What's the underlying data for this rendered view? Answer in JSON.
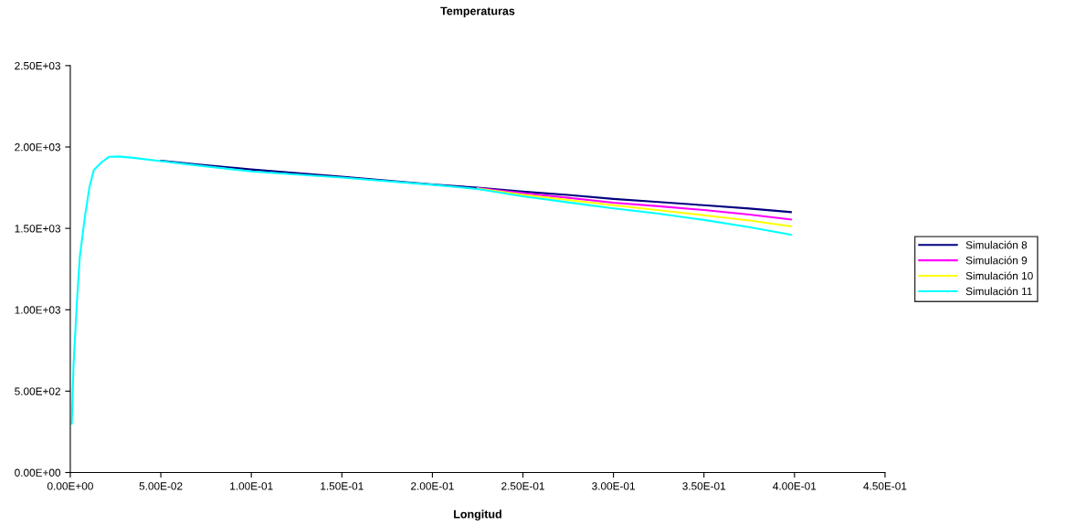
{
  "chart_data": {
    "type": "line",
    "title": "Temperaturas",
    "xlabel": "Longitud",
    "x": [
      0.0008,
      0.0018,
      0.0035,
      0.0052,
      0.008,
      0.0106,
      0.013,
      0.0173,
      0.0215,
      0.027,
      0.036,
      0.05,
      0.07,
      0.1,
      0.15,
      0.2,
      0.225,
      0.25,
      0.275,
      0.3,
      0.325,
      0.35,
      0.375,
      0.398
    ],
    "series": [
      {
        "name": "Simulación 8",
        "color": "#000080",
        "values": [
          null,
          null,
          null,
          null,
          null,
          null,
          null,
          null,
          null,
          null,
          null,
          1915,
          1893,
          1862,
          1818,
          1770,
          1750,
          1726,
          1705,
          1681,
          1662,
          1642,
          1622,
          1600
        ]
      },
      {
        "name": "Simulación 9",
        "color": "#ff00ff",
        "values": [
          null,
          null,
          null,
          null,
          null,
          null,
          null,
          null,
          null,
          null,
          null,
          null,
          null,
          null,
          null,
          null,
          1747,
          1716,
          1688,
          1658,
          1636,
          1613,
          1585,
          1555
        ]
      },
      {
        "name": "Simulación 10",
        "color": "#ffff00",
        "values": [
          null,
          null,
          null,
          null,
          null,
          null,
          null,
          null,
          null,
          null,
          null,
          null,
          null,
          null,
          null,
          null,
          1745,
          1706,
          1675,
          1642,
          1612,
          1581,
          1548,
          1513
        ]
      },
      {
        "name": "Simulación 11",
        "color": "#00ffff",
        "values": [
          300,
          660,
          1020,
          1320,
          1566,
          1755,
          1858,
          1906,
          1940,
          1942,
          1932,
          1913,
          1887,
          1850,
          1812,
          1768,
          1742,
          1697,
          1660,
          1623,
          1590,
          1552,
          1508,
          1461
        ]
      }
    ],
    "xlim": [
      0,
      0.45
    ],
    "xticks": [
      {
        "value": 0,
        "label": "0.00E+00"
      },
      {
        "value": 0.05,
        "label": "5.00E-02"
      },
      {
        "value": 0.1,
        "label": "1.00E-01"
      },
      {
        "value": 0.15,
        "label": "1.50E-01"
      },
      {
        "value": 0.2,
        "label": "2.00E-01"
      },
      {
        "value": 0.25,
        "label": "2.50E-01"
      },
      {
        "value": 0.3,
        "label": "3.00E-01"
      },
      {
        "value": 0.35,
        "label": "3.50E-01"
      },
      {
        "value": 0.4,
        "label": "4.00E-01"
      },
      {
        "value": 0.45,
        "label": "4.50E-01"
      }
    ],
    "ylim": [
      0,
      2500
    ],
    "yticks": [
      {
        "value": 0,
        "label": "0.00E+00"
      },
      {
        "value": 500,
        "label": "5.00E+02"
      },
      {
        "value": 1000,
        "label": "1.00E+03"
      },
      {
        "value": 1500,
        "label": "1.50E+03"
      },
      {
        "value": 2000,
        "label": "2.00E+03"
      },
      {
        "value": 2500,
        "label": "2.50E+03"
      }
    ],
    "grid": false,
    "legend": "right",
    "marker": "none",
    "line_style": "solid"
  }
}
